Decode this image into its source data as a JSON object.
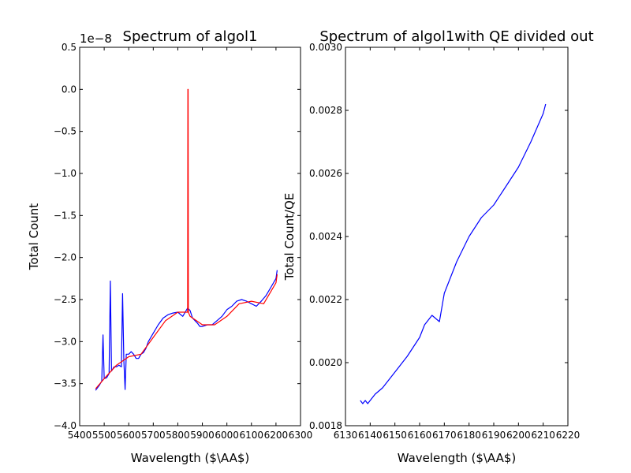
{
  "chart_data": [
    {
      "type": "line",
      "title": "Spectrum of algol1",
      "xlabel": "Wavelength ($\\AA$)",
      "ylabel": "Total Count",
      "offset_text": "1e−8",
      "xlim": [
        5400,
        6300
      ],
      "ylim": [
        -4.0,
        0.5
      ],
      "y_scale_factor": 1e-08,
      "xticks": [
        5400,
        5500,
        5600,
        5700,
        5800,
        5900,
        6000,
        6100,
        6200,
        6300
      ],
      "xtick_labels": [
        "5400",
        "5500",
        "5600",
        "5700",
        "5800",
        "5900",
        "6000",
        "6100",
        "6200",
        "6300"
      ],
      "yticks": [
        0.5,
        0.0,
        -0.5,
        -1.0,
        -1.5,
        -2.0,
        -2.5,
        -3.0,
        -3.5,
        -4.0
      ],
      "ytick_labels": [
        "0.5",
        "0.0",
        "−0.5",
        "−1.0",
        "−1.5",
        "−2.0",
        "−2.5",
        "−3.0",
        "−3.5",
        "−4.0"
      ],
      "grid": false,
      "series": [
        {
          "color": "#0000ff",
          "style": "noisy spectrum",
          "x": [
            5465,
            5480,
            5490,
            5495,
            5500,
            5510,
            5520,
            5525,
            5530,
            5540,
            5550,
            5560,
            5570,
            5575,
            5580,
            5585,
            5590,
            5600,
            5610,
            5620,
            5630,
            5640,
            5650,
            5660,
            5670,
            5680,
            5700,
            5720,
            5740,
            5760,
            5780,
            5800,
            5820,
            5830,
            5840,
            5850,
            5860,
            5870,
            5880,
            5890,
            5900,
            5920,
            5940,
            5960,
            5980,
            6000,
            6020,
            6040,
            6060,
            6080,
            6100,
            6120,
            6140,
            6160,
            6180,
            6200,
            6205
          ],
          "y": [
            -3.58,
            -3.52,
            -3.47,
            -2.92,
            -3.44,
            -3.43,
            -3.38,
            -2.28,
            -3.35,
            -3.3,
            -3.3,
            -3.28,
            -3.3,
            -2.43,
            -3.22,
            -3.57,
            -3.15,
            -3.15,
            -3.12,
            -3.15,
            -3.2,
            -3.2,
            -3.15,
            -3.13,
            -3.08,
            -3.0,
            -2.9,
            -2.8,
            -2.72,
            -2.68,
            -2.66,
            -2.65,
            -2.7,
            -2.65,
            -2.6,
            -2.63,
            -2.72,
            -2.75,
            -2.78,
            -2.82,
            -2.82,
            -2.8,
            -2.8,
            -2.75,
            -2.7,
            -2.62,
            -2.58,
            -2.52,
            -2.5,
            -2.52,
            -2.55,
            -2.58,
            -2.52,
            -2.45,
            -2.35,
            -2.25,
            -2.15
          ]
        },
        {
          "color": "#ff0000",
          "style": "fitted continuum",
          "x": [
            5465,
            5500,
            5550,
            5600,
            5650,
            5700,
            5750,
            5800,
            5840,
            5841,
            5842,
            5843,
            5850,
            5900,
            5950,
            6000,
            6050,
            6100,
            6150,
            6200,
            6205
          ],
          "y": [
            -3.56,
            -3.44,
            -3.28,
            -3.18,
            -3.15,
            -2.95,
            -2.75,
            -2.65,
            -2.65,
            0.0,
            0.0,
            -2.65,
            -2.7,
            -2.8,
            -2.8,
            -2.7,
            -2.55,
            -2.52,
            -2.55,
            -2.3,
            -2.2
          ]
        }
      ]
    },
    {
      "type": "line",
      "title": "Spectrum of algol1with QE divided out",
      "xlabel": "Wavelength ($\\AA$)",
      "ylabel": "Total Count/QE",
      "xlim": [
        6130,
        6220
      ],
      "ylim": [
        0.0018,
        0.003
      ],
      "xticks": [
        6130,
        6140,
        6150,
        6160,
        6170,
        6180,
        6190,
        6200,
        6210,
        6220
      ],
      "xtick_labels": [
        "6130",
        "6140",
        "6150",
        "6160",
        "6170",
        "6180",
        "6190",
        "6200",
        "6210",
        "6220"
      ],
      "yticks": [
        0.003,
        0.0028,
        0.0026,
        0.0024,
        0.0022,
        0.002,
        0.0018
      ],
      "ytick_labels": [
        "0.0030",
        "0.0028",
        "0.0026",
        "0.0024",
        "0.0022",
        "0.0020",
        "0.0018"
      ],
      "grid": false,
      "series": [
        {
          "color": "#0000ff",
          "x": [
            6136,
            6137,
            6138,
            6139,
            6140,
            6142,
            6145,
            6150,
            6155,
            6160,
            6162,
            6165,
            6168,
            6170,
            6175,
            6180,
            6185,
            6190,
            6195,
            6200,
            6205,
            6210,
            6211
          ],
          "y": [
            0.00188,
            0.00187,
            0.00188,
            0.00187,
            0.00188,
            0.0019,
            0.00192,
            0.00197,
            0.00202,
            0.00208,
            0.00212,
            0.00215,
            0.00213,
            0.00222,
            0.00232,
            0.0024,
            0.00246,
            0.0025,
            0.00256,
            0.00262,
            0.0027,
            0.00279,
            0.00282
          ]
        }
      ]
    }
  ]
}
